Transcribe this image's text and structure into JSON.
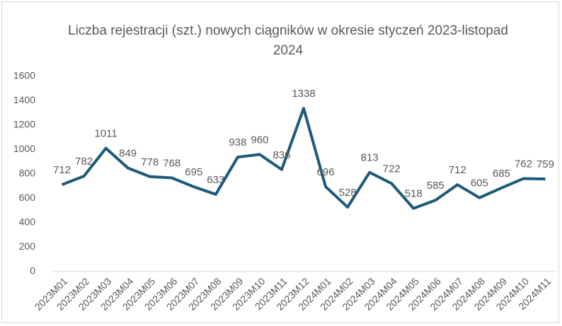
{
  "chart_data": {
    "type": "line",
    "title": "Liczba rejestracji (szt.) nowych ciągników w okresie styczeń 2023-listopad 2024",
    "categories": [
      "2023M01",
      "2023M02",
      "2023M03",
      "2023M04",
      "2023M05",
      "2023M06",
      "2023M07",
      "2023M08",
      "2023M09",
      "2023M10",
      "2023M11",
      "2023M12",
      "2024M01",
      "2024M02",
      "2024M03",
      "2024M04",
      "2024M05",
      "2024M06",
      "2024M07",
      "2024M08",
      "2024M09",
      "2024M10",
      "2024M11"
    ],
    "values": [
      712,
      782,
      1011,
      849,
      778,
      768,
      695,
      633,
      938,
      960,
      836,
      1338,
      696,
      528,
      813,
      722,
      518,
      585,
      712,
      605,
      685,
      762,
      759
    ],
    "color": "#1d5a7a",
    "ylim": [
      0,
      1600
    ],
    "yticks": [
      0,
      200,
      400,
      600,
      800,
      1000,
      1200,
      1400,
      1600
    ],
    "grid": false
  }
}
